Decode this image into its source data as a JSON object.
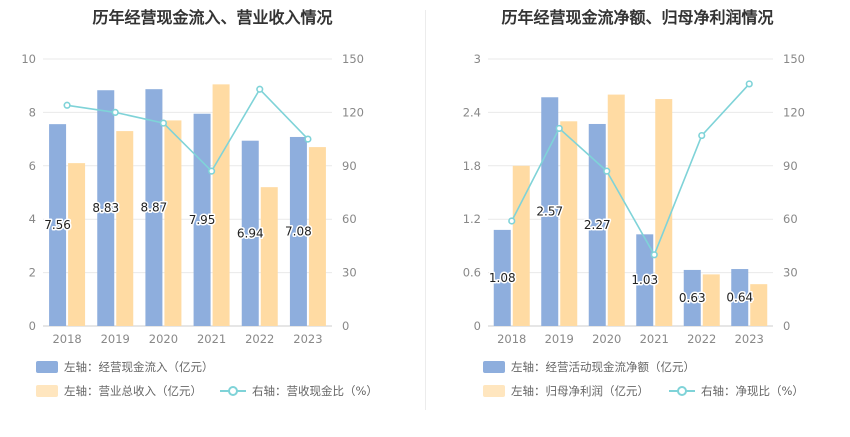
{
  "panels": [
    {
      "title": "历年经营现金流入、营业收入情况",
      "chart_data": {
        "type": "bar",
        "categories": [
          "2018",
          "2019",
          "2020",
          "2021",
          "2022",
          "2023"
        ],
        "series": [
          {
            "name": "左轴：经营现金流入（亿元）",
            "axis": "left",
            "values": [
              7.56,
              8.83,
              8.87,
              7.95,
              6.94,
              7.08
            ],
            "color": "#8eaedd",
            "labels": [
              "7.56",
              "8.83",
              "8.87",
              "7.95",
              "6.94",
              "7.08"
            ]
          },
          {
            "name": "左轴：营业总收入（亿元）",
            "axis": "left",
            "values": [
              6.1,
              7.3,
              7.7,
              9.05,
              5.2,
              6.7
            ],
            "color": "#ffdba3"
          },
          {
            "name": "右轴：营收现金比（%）",
            "axis": "right",
            "type": "line",
            "values": [
              124,
              120,
              114,
              87,
              133,
              105
            ],
            "color": "#7fd3d8"
          }
        ],
        "y_left": {
          "min": 0,
          "max": 10,
          "ticks": [
            "0",
            "2",
            "4",
            "6",
            "8",
            "10"
          ]
        },
        "y_right": {
          "min": 0,
          "max": 150,
          "ticks": [
            "0",
            "30",
            "60",
            "90",
            "120",
            "150"
          ]
        },
        "grid": true,
        "legend_position": "bottom"
      }
    },
    {
      "title": "历年经营现金流净额、归母净利润情况",
      "chart_data": {
        "type": "bar",
        "categories": [
          "2018",
          "2019",
          "2020",
          "2021",
          "2022",
          "2023"
        ],
        "series": [
          {
            "name": "左轴：经营活动现金流净额（亿元）",
            "axis": "left",
            "values": [
              1.08,
              2.57,
              2.27,
              1.03,
              0.63,
              0.64
            ],
            "color": "#8eaedd",
            "labels": [
              "1.08",
              "2.57",
              "2.27",
              "1.03",
              "0.63",
              "0.64"
            ]
          },
          {
            "name": "左轴：归母净利润（亿元）",
            "axis": "left",
            "values": [
              1.8,
              2.3,
              2.6,
              2.55,
              0.58,
              0.47
            ],
            "color": "#ffdba3"
          },
          {
            "name": "右轴：净现比（%）",
            "axis": "right",
            "type": "line",
            "values": [
              59,
              111,
              87,
              40,
              107,
              136
            ],
            "color": "#7fd3d8"
          }
        ],
        "y_left": {
          "min": 0,
          "max": 3,
          "ticks": [
            "0",
            "0.6",
            "1.2",
            "1.8",
            "2.4",
            "3"
          ]
        },
        "y_right": {
          "min": 0,
          "max": 150,
          "ticks": [
            "0",
            "30",
            "60",
            "90",
            "120",
            "150"
          ]
        },
        "grid": true,
        "legend_position": "bottom"
      }
    }
  ]
}
